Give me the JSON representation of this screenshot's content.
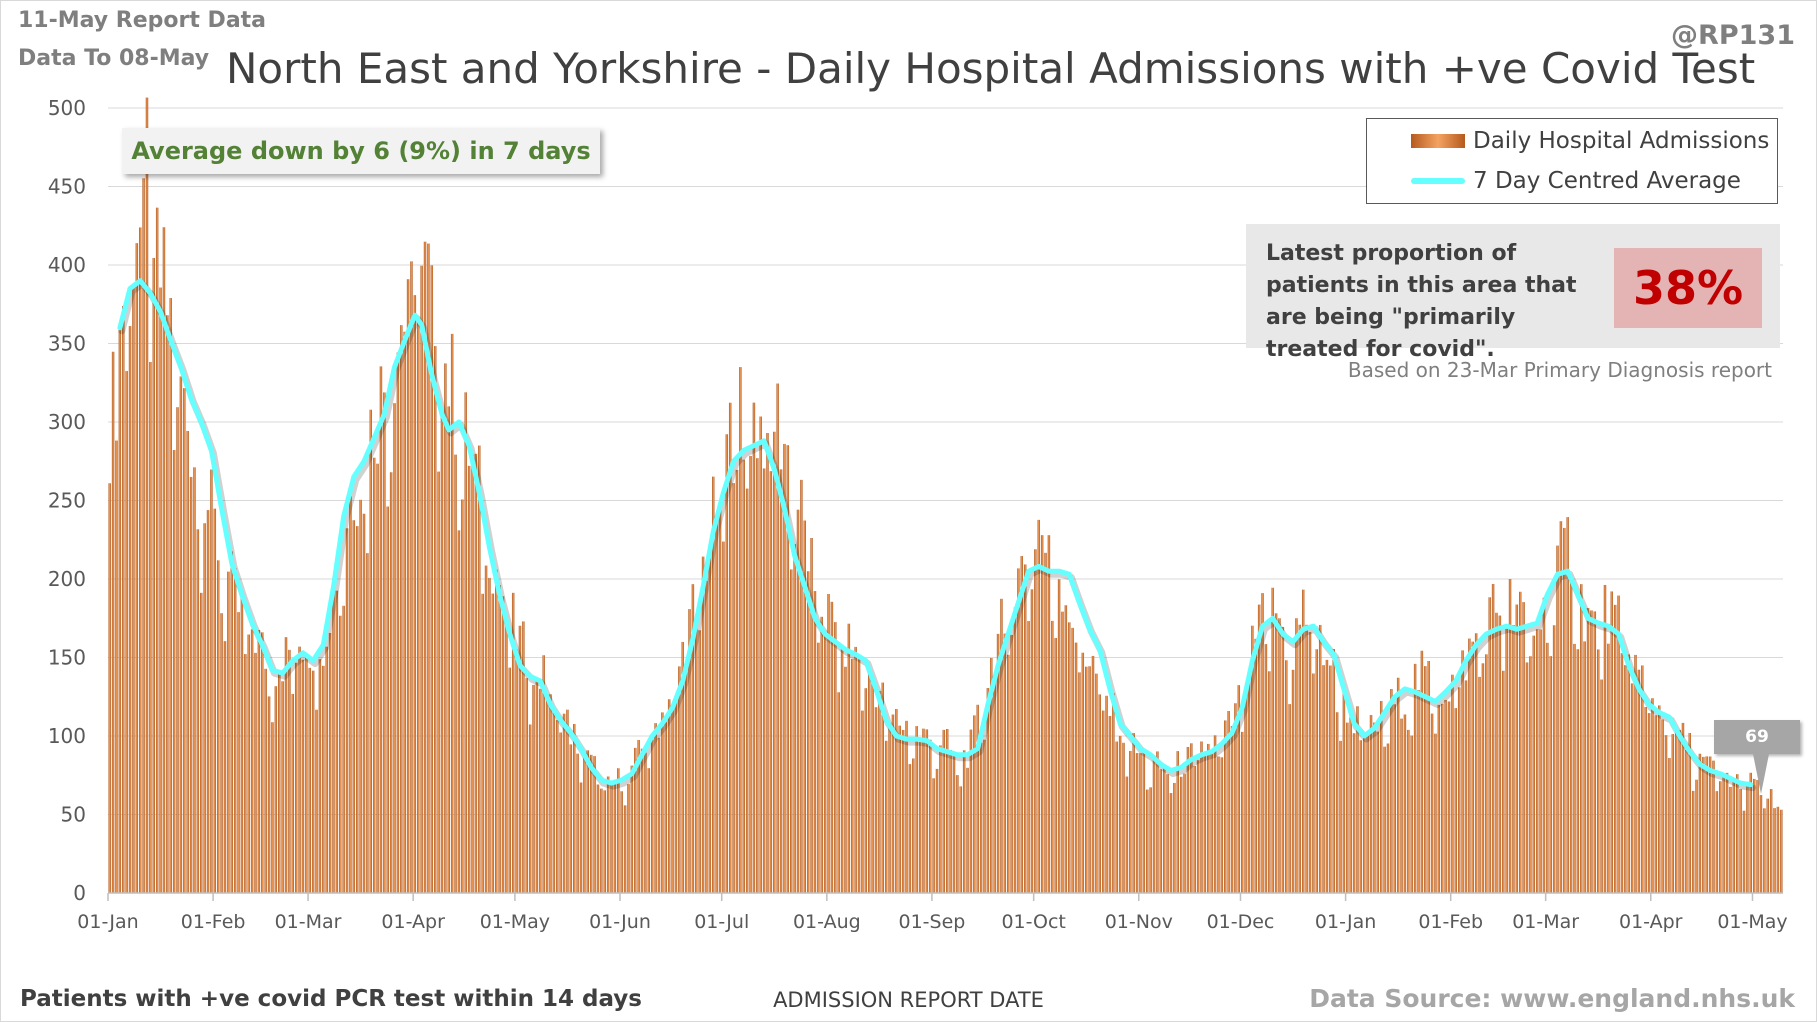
{
  "header": {
    "report_date": "11-May Report Data",
    "data_to": "Data To 08-May",
    "handle": "@RP131"
  },
  "footer": {
    "footnote": "Patients with +ve covid PCR test within 14 days",
    "source": "Data Source: www.england.nhs.uk"
  },
  "annotations": {
    "average_change": "Average down by 6 (9%) in 7 days",
    "proportion_text": "Latest proportion of patients in this area that are being \"primarily treated for covid\".",
    "proportion_value": "38%",
    "based_on": "Based on 23-Mar Primary Diagnosis report",
    "latest_average_label": "69"
  },
  "colors": {
    "bars": "#c8651e",
    "bar_light": "#f4a261",
    "average_line": "#66ffff",
    "title": "#404040",
    "average_text": "#538135",
    "proportion_value": "#c00000"
  },
  "chart_data": {
    "type": "bar",
    "title": "North East and Yorkshire - Daily Hospital Admissions with +ve Covid Test",
    "xlabel": "ADMISSION REPORT DATE",
    "ylabel": "",
    "ylim": [
      0,
      500
    ],
    "yticks": [
      0,
      50,
      100,
      150,
      200,
      250,
      300,
      350,
      400,
      450,
      500
    ],
    "xtick_labels": [
      "01-Jan",
      "01-Feb",
      "01-Mar",
      "01-Apr",
      "01-May",
      "01-Jun",
      "01-Jul",
      "01-Aug",
      "01-Sep",
      "01-Oct",
      "01-Nov",
      "01-Dec",
      "01-Jan",
      "01-Feb",
      "01-Mar",
      "01-Apr",
      "01-May"
    ],
    "xtick_days": [
      0,
      31,
      59,
      90,
      120,
      151,
      181,
      212,
      243,
      273,
      304,
      334,
      365,
      396,
      424,
      455,
      485
    ],
    "days_total": 494,
    "grid": "horizontal",
    "legend_position": "top-right",
    "series": [
      {
        "name": "Daily Hospital Admissions",
        "type": "bar",
        "keypoints": [
          [
            0,
            290
          ],
          [
            2,
            315
          ],
          [
            4,
            375
          ],
          [
            6,
            400
          ],
          [
            8,
            420
          ],
          [
            10,
            395
          ],
          [
            11,
            455
          ],
          [
            13,
            405
          ],
          [
            15,
            380
          ],
          [
            18,
            355
          ],
          [
            20,
            330
          ],
          [
            22,
            300
          ],
          [
            25,
            275
          ],
          [
            28,
            250
          ],
          [
            31,
            225
          ],
          [
            35,
            195
          ],
          [
            38,
            175
          ],
          [
            42,
            165
          ],
          [
            45,
            150
          ],
          [
            48,
            140
          ],
          [
            51,
            145
          ],
          [
            54,
            150
          ],
          [
            57,
            155
          ],
          [
            60,
            150
          ],
          [
            63,
            160
          ],
          [
            66,
            190
          ],
          [
            68,
            210
          ],
          [
            71,
            245
          ],
          [
            75,
            270
          ],
          [
            79,
            300
          ],
          [
            83,
            330
          ],
          [
            87,
            360
          ],
          [
            89,
            410
          ],
          [
            91,
            390
          ],
          [
            94,
            375
          ],
          [
            97,
            345
          ],
          [
            100,
            320
          ],
          [
            103,
            295
          ],
          [
            106,
            275
          ],
          [
            110,
            240
          ],
          [
            114,
            200
          ],
          [
            118,
            170
          ],
          [
            122,
            150
          ],
          [
            126,
            140
          ],
          [
            130,
            125
          ],
          [
            135,
            105
          ],
          [
            140,
            85
          ],
          [
            144,
            75
          ],
          [
            147,
            65
          ],
          [
            150,
            70
          ],
          [
            153,
            75
          ],
          [
            156,
            85
          ],
          [
            160,
            100
          ],
          [
            164,
            115
          ],
          [
            168,
            140
          ],
          [
            172,
            175
          ],
          [
            176,
            210
          ],
          [
            180,
            250
          ],
          [
            184,
            290
          ],
          [
            188,
            300
          ],
          [
            192,
            290
          ],
          [
            196,
            300
          ],
          [
            199,
            280
          ],
          [
            203,
            245
          ],
          [
            207,
            200
          ],
          [
            211,
            175
          ],
          [
            215,
            160
          ],
          [
            219,
            150
          ],
          [
            223,
            140
          ],
          [
            227,
            125
          ],
          [
            230,
            110
          ],
          [
            234,
            105
          ],
          [
            238,
            100
          ],
          [
            242,
            95
          ],
          [
            246,
            95
          ],
          [
            250,
            80
          ],
          [
            254,
            90
          ],
          [
            257,
            115
          ],
          [
            261,
            150
          ],
          [
            265,
            175
          ],
          [
            268,
            195
          ],
          [
            271,
            215
          ],
          [
            274,
            230
          ],
          [
            277,
            205
          ],
          [
            280,
            200
          ],
          [
            284,
            170
          ],
          [
            288,
            150
          ],
          [
            292,
            130
          ],
          [
            296,
            110
          ],
          [
            300,
            95
          ],
          [
            304,
            85
          ],
          [
            308,
            80
          ],
          [
            312,
            75
          ],
          [
            316,
            80
          ],
          [
            320,
            85
          ],
          [
            324,
            90
          ],
          [
            328,
            95
          ],
          [
            332,
            110
          ],
          [
            336,
            140
          ],
          [
            340,
            170
          ],
          [
            344,
            175
          ],
          [
            348,
            150
          ],
          [
            352,
            175
          ],
          [
            356,
            160
          ],
          [
            360,
            145
          ],
          [
            364,
            120
          ],
          [
            368,
            105
          ],
          [
            372,
            100
          ],
          [
            376,
            110
          ],
          [
            380,
            120
          ],
          [
            384,
            130
          ],
          [
            388,
            135
          ],
          [
            392,
            125
          ],
          [
            396,
            130
          ],
          [
            400,
            145
          ],
          [
            404,
            160
          ],
          [
            408,
            175
          ],
          [
            412,
            180
          ],
          [
            416,
            170
          ],
          [
            420,
            165
          ],
          [
            424,
            175
          ],
          [
            428,
            205
          ],
          [
            431,
            220
          ],
          [
            434,
            180
          ],
          [
            438,
            165
          ],
          [
            442,
            175
          ],
          [
            446,
            160
          ],
          [
            450,
            140
          ],
          [
            454,
            125
          ],
          [
            458,
            110
          ],
          [
            462,
            100
          ],
          [
            466,
            90
          ],
          [
            470,
            80
          ],
          [
            474,
            75
          ],
          [
            478,
            70
          ],
          [
            482,
            70
          ],
          [
            486,
            65
          ],
          [
            490,
            60
          ],
          [
            493,
            50
          ]
        ]
      },
      {
        "name": "7 Day Centred Average",
        "type": "line",
        "keypoints": [
          [
            3,
            360
          ],
          [
            6,
            385
          ],
          [
            9,
            390
          ],
          [
            12,
            382
          ],
          [
            15,
            370
          ],
          [
            18,
            352
          ],
          [
            21,
            335
          ],
          [
            24,
            315
          ],
          [
            27,
            300
          ],
          [
            30,
            282
          ],
          [
            33,
            245
          ],
          [
            36,
            210
          ],
          [
            39,
            190
          ],
          [
            42,
            172
          ],
          [
            45,
            158
          ],
          [
            48,
            142
          ],
          [
            51,
            140
          ],
          [
            54,
            148
          ],
          [
            57,
            153
          ],
          [
            60,
            148
          ],
          [
            63,
            158
          ],
          [
            66,
            195
          ],
          [
            69,
            240
          ],
          [
            72,
            265
          ],
          [
            75,
            275
          ],
          [
            78,
            290
          ],
          [
            81,
            305
          ],
          [
            84,
            335
          ],
          [
            87,
            352
          ],
          [
            90,
            368
          ],
          [
            92,
            362
          ],
          [
            95,
            330
          ],
          [
            98,
            305
          ],
          [
            100,
            295
          ],
          [
            103,
            300
          ],
          [
            106,
            285
          ],
          [
            109,
            255
          ],
          [
            112,
            220
          ],
          [
            115,
            190
          ],
          [
            118,
            165
          ],
          [
            121,
            145
          ],
          [
            124,
            138
          ],
          [
            127,
            135
          ],
          [
            130,
            120
          ],
          [
            133,
            110
          ],
          [
            136,
            102
          ],
          [
            139,
            92
          ],
          [
            142,
            80
          ],
          [
            145,
            72
          ],
          [
            148,
            70
          ],
          [
            151,
            72
          ],
          [
            154,
            76
          ],
          [
            157,
            88
          ],
          [
            160,
            100
          ],
          [
            163,
            108
          ],
          [
            166,
            118
          ],
          [
            169,
            135
          ],
          [
            172,
            162
          ],
          [
            175,
            195
          ],
          [
            178,
            230
          ],
          [
            181,
            255
          ],
          [
            184,
            275
          ],
          [
            187,
            282
          ],
          [
            190,
            285
          ],
          [
            193,
            288
          ],
          [
            196,
            270
          ],
          [
            199,
            245
          ],
          [
            202,
            215
          ],
          [
            205,
            195
          ],
          [
            208,
            175
          ],
          [
            211,
            165
          ],
          [
            214,
            160
          ],
          [
            217,
            155
          ],
          [
            220,
            152
          ],
          [
            223,
            148
          ],
          [
            226,
            130
          ],
          [
            229,
            110
          ],
          [
            232,
            100
          ],
          [
            235,
            98
          ],
          [
            238,
            98
          ],
          [
            241,
            97
          ],
          [
            244,
            92
          ],
          [
            247,
            90
          ],
          [
            250,
            88
          ],
          [
            253,
            88
          ],
          [
            256,
            92
          ],
          [
            259,
            120
          ],
          [
            262,
            145
          ],
          [
            265,
            165
          ],
          [
            268,
            185
          ],
          [
            271,
            205
          ],
          [
            274,
            208
          ],
          [
            277,
            205
          ],
          [
            280,
            205
          ],
          [
            283,
            203
          ],
          [
            286,
            185
          ],
          [
            289,
            168
          ],
          [
            292,
            155
          ],
          [
            295,
            130
          ],
          [
            298,
            108
          ],
          [
            301,
            100
          ],
          [
            304,
            92
          ],
          [
            307,
            88
          ],
          [
            310,
            82
          ],
          [
            313,
            78
          ],
          [
            316,
            80
          ],
          [
            319,
            85
          ],
          [
            322,
            88
          ],
          [
            325,
            90
          ],
          [
            328,
            95
          ],
          [
            331,
            102
          ],
          [
            334,
            118
          ],
          [
            337,
            148
          ],
          [
            340,
            170
          ],
          [
            343,
            175
          ],
          [
            346,
            165
          ],
          [
            349,
            160
          ],
          [
            352,
            168
          ],
          [
            355,
            170
          ],
          [
            358,
            160
          ],
          [
            361,
            152
          ],
          [
            364,
            130
          ],
          [
            367,
            108
          ],
          [
            370,
            100
          ],
          [
            373,
            105
          ],
          [
            376,
            115
          ],
          [
            379,
            125
          ],
          [
            382,
            130
          ],
          [
            385,
            128
          ],
          [
            388,
            125
          ],
          [
            391,
            122
          ],
          [
            394,
            128
          ],
          [
            397,
            135
          ],
          [
            400,
            148
          ],
          [
            403,
            158
          ],
          [
            406,
            165
          ],
          [
            409,
            168
          ],
          [
            412,
            170
          ],
          [
            415,
            168
          ],
          [
            418,
            170
          ],
          [
            421,
            172
          ],
          [
            424,
            190
          ],
          [
            427,
            203
          ],
          [
            430,
            205
          ],
          [
            433,
            190
          ],
          [
            436,
            175
          ],
          [
            439,
            172
          ],
          [
            442,
            170
          ],
          [
            445,
            165
          ],
          [
            448,
            145
          ],
          [
            451,
            130
          ],
          [
            454,
            120
          ],
          [
            457,
            115
          ],
          [
            460,
            112
          ],
          [
            463,
            100
          ],
          [
            466,
            90
          ],
          [
            469,
            82
          ],
          [
            472,
            78
          ],
          [
            475,
            76
          ],
          [
            478,
            73
          ],
          [
            481,
            70
          ],
          [
            484,
            69
          ]
        ]
      }
    ]
  }
}
